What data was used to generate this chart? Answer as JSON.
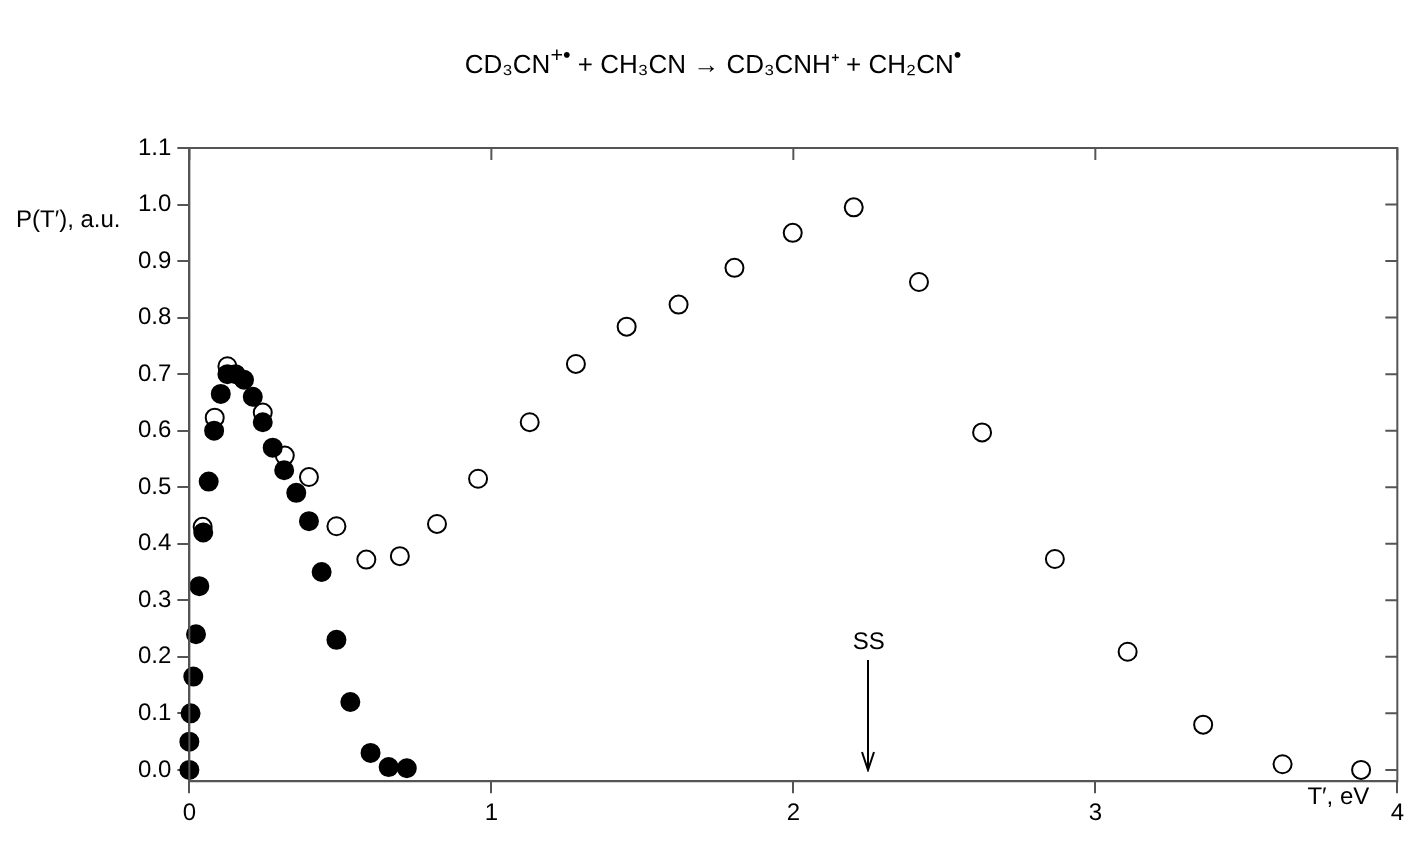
{
  "chart_data": {
    "type": "scatter",
    "title": "CD₃CN$^{+•}$ + CH₃CN → CD₃CNH⁺ + CH₂CN$^{•}$",
    "xlabel": "T′, eV",
    "ylabel": "P(T′), a.u.",
    "xlim": [
      0,
      4
    ],
    "xticks": [
      0,
      1,
      2,
      3,
      4
    ],
    "ylim": [
      -0.02,
      1.1
    ],
    "yticks": [
      {
        "value": 0,
        "label": "0.0"
      },
      0.1,
      0.2,
      0.3,
      0.4,
      0.5,
      0.6,
      0.7,
      0.8,
      0.9,
      {
        "value": 1,
        "label": "1.0"
      },
      1.1
    ],
    "grid": false,
    "legend": false,
    "marker": "circle",
    "ref_lines": [
      {
        "axis": "x",
        "value": 2.25,
        "label": "SS"
      }
    ],
    "series": [
      {
        "color": "#ffffff",
        "x": [
          0.044,
          0.084,
          0.126,
          0.243,
          0.316,
          0.396,
          0.487,
          0.586,
          0.697,
          0.82,
          0.956,
          1.127,
          1.28,
          1.448,
          1.62,
          1.805,
          1.998,
          2.2,
          2.416,
          2.625,
          2.866,
          3.107,
          3.357,
          3.62,
          3.88
        ],
        "values": [
          0.43,
          0.623,
          0.714,
          0.632,
          0.556,
          0.518,
          0.431,
          0.372,
          0.378,
          0.435,
          0.515,
          0.615,
          0.718,
          0.784,
          0.823,
          0.888,
          0.95,
          0.995,
          0.863,
          0.597,
          0.373,
          0.209,
          0.08,
          0.01,
          0
        ]
      },
      {
        "color": "#000000",
        "x": [
          0,
          0,
          0.004,
          0.013,
          0.022,
          0.033,
          0.046,
          0.064,
          0.082,
          0.104,
          0.126,
          0.153,
          0.181,
          0.21,
          0.243,
          0.276,
          0.314,
          0.354,
          0.396,
          0.438,
          0.487,
          0.533,
          0.6,
          0.66,
          0.72
        ],
        "values": [
          0,
          0.05,
          0.1,
          0.165,
          0.24,
          0.325,
          0.42,
          0.51,
          0.6,
          0.665,
          0.7,
          0.7,
          0.69,
          0.66,
          0.615,
          0.57,
          0.53,
          0.49,
          0.44,
          0.35,
          0.23,
          0.12,
          0.03,
          0.005,
          0.003
        ]
      }
    ]
  }
}
